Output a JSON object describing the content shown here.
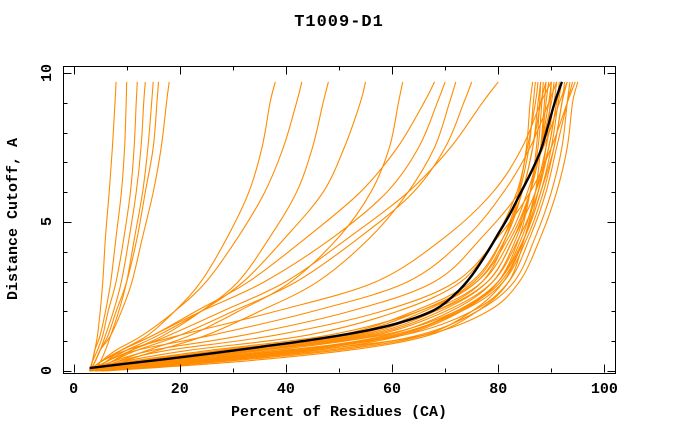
{
  "chart_data": {
    "type": "line",
    "title": "T1009-D1",
    "xlabel": "Percent of Residues (CA)",
    "ylabel": "Distance Cutoff, A",
    "xlim": [
      -2,
      102
    ],
    "ylim": [
      -0.07,
      10.3
    ],
    "grid": false,
    "legend": "none",
    "x_ticks": {
      "major": [
        0,
        20,
        40,
        60,
        80,
        100
      ],
      "minor": [
        10,
        30,
        50,
        70,
        90
      ],
      "labels": [
        "0",
        "20",
        "40",
        "60",
        "80",
        "100"
      ]
    },
    "y_ticks": {
      "major": [
        0,
        5,
        10
      ],
      "minor": [
        1,
        2,
        3,
        4,
        6,
        7,
        8,
        9
      ],
      "labels": [
        "0",
        "5",
        "10"
      ]
    },
    "colors": {
      "background": "#ffffff",
      "axis": "#000000",
      "text": "#000000",
      "model_curve": "#ff8c00",
      "highlight_curve": "#000000"
    },
    "y_grid": [
      0,
      0.3,
      0.7,
      1.2,
      2,
      3,
      4.5,
      6,
      7.5,
      9,
      9.7
    ],
    "model_curves": [
      [
        4,
        22,
        45,
        66,
        78,
        84,
        88,
        91,
        93,
        94,
        95
      ],
      [
        3,
        18,
        40,
        62,
        75,
        82,
        86,
        89,
        91,
        93,
        94
      ],
      [
        5,
        25,
        48,
        65,
        76,
        83,
        87,
        90,
        92,
        93,
        93.5
      ],
      [
        4,
        15,
        35,
        58,
        72,
        80,
        85,
        88,
        90.5,
        92,
        93
      ],
      [
        3,
        20,
        42,
        60,
        73,
        81,
        85.5,
        88.5,
        90.5,
        92,
        92.5
      ],
      [
        4,
        12,
        30,
        52,
        68,
        78,
        83,
        87,
        89.5,
        91,
        92
      ],
      [
        3,
        17,
        38,
        57,
        70,
        79,
        84,
        87.5,
        89.5,
        91,
        91.5
      ],
      [
        5,
        23,
        44,
        61,
        72,
        80,
        84.5,
        87,
        89,
        90.5,
        91
      ],
      [
        4,
        10,
        26,
        48,
        65,
        76,
        82,
        85.5,
        88,
        90,
        90.5
      ],
      [
        3,
        14,
        33,
        54,
        67,
        77,
        82.5,
        86,
        88,
        89.5,
        90
      ],
      [
        5,
        27,
        50,
        66,
        75,
        81,
        85,
        87.5,
        89,
        89.8,
        90
      ],
      [
        4,
        16,
        36,
        56,
        69,
        78,
        83,
        86,
        88,
        89,
        89.5
      ],
      [
        3,
        11,
        28,
        50,
        64,
        75,
        81,
        84.5,
        86.5,
        88,
        89
      ],
      [
        6,
        30,
        52,
        67,
        76,
        82,
        85,
        87,
        88,
        88.7,
        89
      ],
      [
        4,
        19,
        41,
        59,
        71,
        79,
        83.5,
        86,
        87.5,
        88.2,
        88.5
      ],
      [
        3,
        13,
        31,
        53,
        66,
        76,
        81.5,
        84.5,
        86.5,
        87.5,
        88
      ],
      [
        5,
        24,
        46,
        62,
        73,
        80,
        84,
        86,
        87.2,
        87.8,
        88
      ],
      [
        4,
        9,
        22,
        44,
        61,
        73,
        79.5,
        83.5,
        85.5,
        87,
        87.5
      ],
      [
        3,
        15,
        34,
        55,
        68,
        77,
        81.5,
        84,
        85.8,
        86.6,
        87
      ],
      [
        4,
        8,
        18,
        38,
        58,
        72,
        80,
        86,
        90,
        93,
        94.5
      ],
      [
        3,
        7,
        15,
        32,
        52,
        68,
        77,
        84,
        88.5,
        91.5,
        93
      ],
      [
        4,
        6,
        12,
        26,
        45,
        63,
        74,
        81,
        86,
        89.5,
        91
      ],
      [
        3,
        5,
        10,
        20,
        38,
        57,
        70,
        79,
        84.5,
        88,
        90
      ],
      [
        4,
        21,
        43,
        61,
        72.5,
        80.5,
        85,
        88,
        90,
        91.3,
        92
      ],
      [
        3,
        12,
        29,
        51,
        65,
        75.5,
        81,
        83.8,
        85.3,
        86,
        86.5
      ],
      [
        3,
        6,
        11,
        18,
        28,
        40,
        52,
        63,
        71,
        77,
        80
      ],
      [
        4,
        7,
        12,
        20,
        30,
        42,
        54,
        64,
        70,
        73.5,
        75
      ],
      [
        5,
        9,
        16,
        25,
        35,
        46,
        56,
        63,
        68,
        70.8,
        72
      ],
      [
        3,
        5,
        9,
        15,
        24,
        36,
        49,
        59,
        65,
        68.5,
        70
      ],
      [
        3,
        5,
        9,
        15,
        23,
        33,
        44,
        54,
        61,
        66,
        68
      ],
      [
        4,
        8,
        14,
        22,
        31,
        41,
        50,
        56,
        59.5,
        61.2,
        62
      ],
      [
        3,
        6,
        10,
        16,
        24,
        32,
        40,
        47,
        51,
        54,
        55
      ],
      [
        4,
        7,
        11,
        17,
        24,
        31,
        37,
        42,
        45,
        47,
        48
      ],
      [
        3,
        5,
        8,
        13,
        19,
        25,
        31,
        36,
        39.5,
        42,
        43
      ],
      [
        4,
        6,
        9,
        14,
        19,
        24,
        29,
        33,
        35.5,
        37,
        38
      ],
      [
        3,
        4,
        5,
        7,
        9,
        11,
        13,
        15,
        16.5,
        17.5,
        18
      ],
      [
        3,
        4,
        5,
        6.5,
        8,
        10,
        12,
        13.5,
        15,
        15.7,
        16
      ],
      [
        4,
        5,
        6,
        7,
        8.5,
        10,
        11.5,
        13,
        14,
        14.7,
        15
      ],
      [
        3,
        4,
        5,
        6,
        7.5,
        9,
        10.5,
        11.8,
        12.7,
        13.2,
        13.5
      ],
      [
        3,
        3.5,
        4.5,
        5.5,
        6.5,
        8,
        9.5,
        10.7,
        11.4,
        11.8,
        12
      ],
      [
        3,
        3.5,
        4,
        5,
        6,
        7,
        8,
        9,
        9.6,
        9.9,
        10
      ],
      [
        3,
        3.5,
        4,
        4.5,
        5,
        5.5,
        6,
        6.7,
        7.3,
        7.8,
        8
      ]
    ],
    "highlight_curve": [
      [
        3,
        0.1
      ],
      [
        10,
        0.25
      ],
      [
        22,
        0.5
      ],
      [
        34,
        0.78
      ],
      [
        45,
        1.05
      ],
      [
        55,
        1.35
      ],
      [
        62,
        1.65
      ],
      [
        68,
        2.05
      ],
      [
        72,
        2.6
      ],
      [
        75,
        3.2
      ],
      [
        78,
        4.0
      ],
      [
        80,
        4.6
      ],
      [
        82,
        5.2
      ],
      [
        84,
        5.9
      ],
      [
        86,
        6.6
      ],
      [
        88,
        7.4
      ],
      [
        89.5,
        8.3
      ],
      [
        90.8,
        9.1
      ],
      [
        92,
        9.7
      ]
    ]
  }
}
